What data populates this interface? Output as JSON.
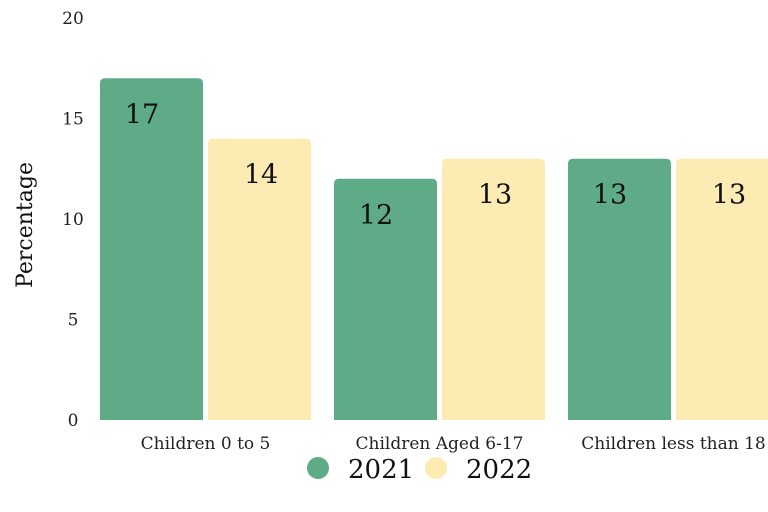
{
  "chart_data": {
    "type": "bar",
    "title": "",
    "xlabel": "",
    "ylabel": "Percentage",
    "ylim": [
      0,
      20
    ],
    "yticks": [
      0,
      5,
      10,
      15,
      20
    ],
    "categories": [
      "Children 0 to 5",
      "Children Aged 6-17",
      "Children less than 18"
    ],
    "series": [
      {
        "name": "2021",
        "values": [
          17,
          12,
          13
        ],
        "color": "#5fab88"
      },
      {
        "name": "2022",
        "values": [
          14,
          13,
          13
        ],
        "color": "#fdebb4"
      }
    ],
    "legend_position": "bottom",
    "grid": false
  }
}
